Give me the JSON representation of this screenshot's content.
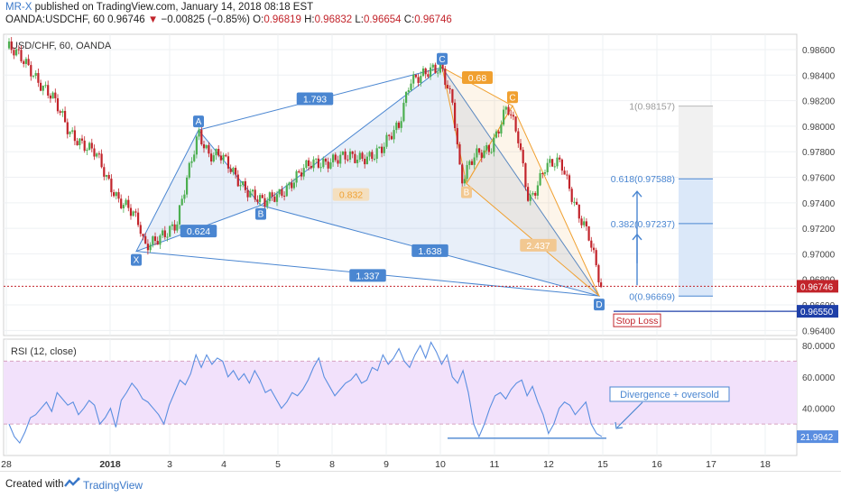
{
  "header": {
    "author": "MR-X",
    "published_text": "published on TradingView.com, January 14, 2018 08:18 EST",
    "symbol": "OANDA:USDCHF, 60",
    "last": "0.96746",
    "change": "−0.00825 (−0.85%)",
    "o_label": "O:",
    "o": "0.96819",
    "h_label": "H:",
    "h": "0.96832",
    "l_label": "L:",
    "l": "0.96654",
    "c_label": "C:",
    "c": "0.96746"
  },
  "footer": {
    "created": "Created with",
    "brand": "TradingView"
  },
  "colors": {
    "up": "#4caf50",
    "down": "#c2242b",
    "pattern_blue": "#4a86d1",
    "pattern_orange": "#f0a030",
    "rsi_line": "#5a8ee0",
    "rsi_band": "#f2e1fb",
    "fib_box": "#dbe8f9"
  },
  "chart_data": [
    {
      "type": "candlestick",
      "title": "USD/CHF, 60, OANDA",
      "x_ticks": [
        "28",
        "2018",
        "3",
        "4",
        "5",
        "8",
        "9",
        "10",
        "11",
        "12",
        "15",
        "16",
        "17",
        "18"
      ],
      "y_ticks": [
        "0.98600",
        "0.98400",
        "0.98200",
        "0.98000",
        "0.97800",
        "0.97600",
        "0.97400",
        "0.97200",
        "0.97000",
        "0.96800",
        "0.96600",
        "0.96400"
      ],
      "ylim": [
        0.9636,
        0.9872
      ],
      "price_path": [
        [
          0,
          0.9861
        ],
        [
          0.4,
          0.9845
        ],
        [
          0.8,
          0.9822
        ],
        [
          1.1,
          0.9796
        ],
        [
          1.3,
          0.979
        ],
        [
          1.6,
          0.9778
        ],
        [
          1.8,
          0.9758
        ],
        [
          2.0,
          0.9745
        ],
        [
          2.2,
          0.9738
        ],
        [
          2.4,
          0.9722
        ],
        [
          2.5,
          0.9703
        ],
        [
          2.8,
          0.9716
        ],
        [
          3.1,
          0.9722
        ],
        [
          3.3,
          0.976
        ],
        [
          3.5,
          0.9797
        ],
        [
          3.7,
          0.9778
        ],
        [
          3.9,
          0.9776
        ],
        [
          4.2,
          0.976
        ],
        [
          4.5,
          0.9747
        ],
        [
          4.7,
          0.9738
        ],
        [
          5.0,
          0.9748
        ],
        [
          5.3,
          0.976
        ],
        [
          5.6,
          0.977
        ],
        [
          6.0,
          0.9775
        ],
        [
          6.4,
          0.9774
        ],
        [
          6.9,
          0.9782
        ],
        [
          7.2,
          0.98
        ],
        [
          7.4,
          0.9838
        ],
        [
          7.7,
          0.984
        ],
        [
          8.0,
          0.9845
        ],
        [
          8.2,
          0.982
        ],
        [
          8.35,
          0.9756
        ],
        [
          8.6,
          0.9775
        ],
        [
          8.9,
          0.9785
        ],
        [
          9.2,
          0.9815
        ],
        [
          9.4,
          0.979
        ],
        [
          9.6,
          0.9742
        ],
        [
          9.9,
          0.9768
        ],
        [
          10.2,
          0.977
        ],
        [
          10.5,
          0.9735
        ],
        [
          10.7,
          0.9715
        ],
        [
          10.85,
          0.9687
        ],
        [
          10.95,
          0.9669
        ]
      ],
      "last_price": "0.96746",
      "stop_price": "0.96550",
      "stop_label": "Stop Loss",
      "patterns": {
        "xabcd": {
          "points": [
            {
              "label": "X",
              "x": 2.35,
              "y": 0.9702
            },
            {
              "label": "A",
              "x": 3.5,
              "y": 0.9797
            },
            {
              "label": "B",
              "x": 4.65,
              "y": 0.9738
            },
            {
              "label": "C",
              "x": 8.0,
              "y": 0.9846
            },
            {
              "label": "D",
              "x": 10.9,
              "y": 0.9667
            }
          ],
          "ratios": [
            "0.624",
            "1.793",
            "1.638",
            "1.337"
          ]
        },
        "abcd": {
          "points": [
            {
              "label": "C",
              "x": 8.0,
              "y": 0.9846
            },
            {
              "label": "B",
              "x": 8.45,
              "y": 0.9755
            },
            {
              "label": "C",
              "x": 9.3,
              "y": 0.9816
            },
            {
              "label": "D",
              "x": 10.9,
              "y": 0.9667
            }
          ],
          "ratios": [
            "0.68",
            "0.832",
            "2.437"
          ]
        }
      },
      "fibonacci": [
        {
          "level": 1,
          "label": "1(0.98157)",
          "price": 0.98157
        },
        {
          "level": 0.618,
          "label": "0.618(0.97588)",
          "price": 0.97588
        },
        {
          "level": 0.382,
          "label": "0.382(0.97237)",
          "price": 0.97237
        },
        {
          "level": 0,
          "label": "0(0.96669)",
          "price": 0.96669
        }
      ]
    },
    {
      "type": "line",
      "title": "RSI (12, close)",
      "y_ticks": [
        "80.0000",
        "60.0000",
        "40.0000"
      ],
      "ylim": [
        10,
        84
      ],
      "band": [
        30,
        70
      ],
      "last_value": "21.9942",
      "annotation": "Divergence + oversold",
      "values": [
        30,
        22,
        18,
        25,
        34,
        36,
        40,
        44,
        38,
        50,
        46,
        42,
        44,
        36,
        40,
        45,
        42,
        30,
        34,
        40,
        28,
        45,
        50,
        56,
        52,
        46,
        44,
        40,
        36,
        30,
        42,
        50,
        58,
        55,
        62,
        74,
        66,
        74,
        68,
        72,
        70,
        60,
        64,
        58,
        62,
        56,
        64,
        58,
        50,
        52,
        46,
        40,
        44,
        50,
        48,
        52,
        58,
        66,
        72,
        60,
        54,
        48,
        52,
        56,
        58,
        62,
        56,
        58,
        66,
        64,
        74,
        68,
        72,
        78,
        70,
        66,
        74,
        80,
        72,
        82,
        76,
        68,
        74,
        60,
        56,
        64,
        50,
        30,
        22,
        30,
        40,
        48,
        50,
        46,
        52,
        56,
        58,
        48,
        54,
        44,
        36,
        24,
        30,
        40,
        44,
        42,
        36,
        40,
        44,
        30,
        24,
        22
      ]
    }
  ]
}
